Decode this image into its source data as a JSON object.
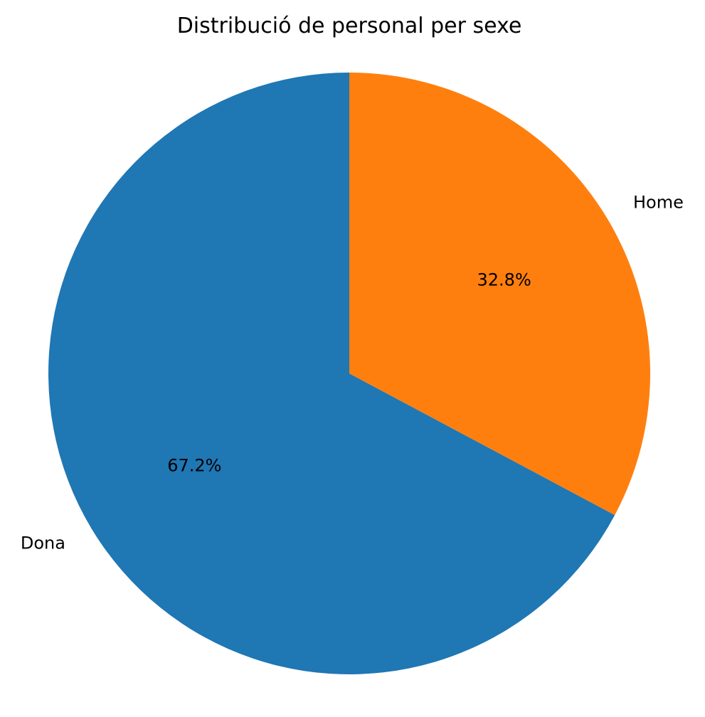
{
  "chart_data": {
    "type": "pie",
    "title": "Distribució de personal per sexe",
    "slices": [
      {
        "label": "Dona",
        "value": 67.2,
        "pct_label": "67.2%",
        "color": "#1f77b4"
      },
      {
        "label": "Home",
        "value": 32.8,
        "pct_label": "32.8%",
        "color": "#ff7f0e"
      }
    ],
    "start_angle_deg": 90,
    "direction": "counterclockwise",
    "legend": "none"
  }
}
